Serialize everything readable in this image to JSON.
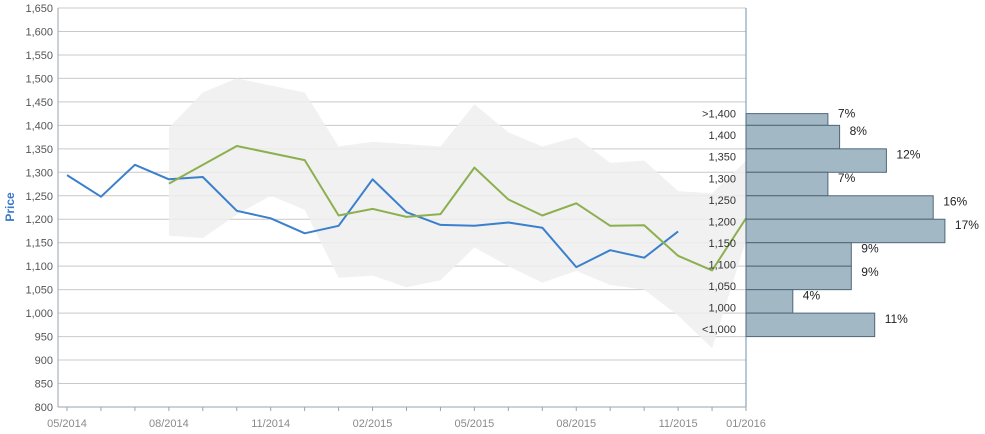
{
  "chart_data": {
    "type": "line",
    "title": "",
    "ylabel": "Price",
    "ylim": [
      800,
      1650
    ],
    "yticks": [
      "800",
      "850",
      "900",
      "950",
      "1,000",
      "1,050",
      "1,100",
      "1,150",
      "1,200",
      "1,250",
      "1,300",
      "1,350",
      "1,400",
      "1,450",
      "1,500",
      "1,550",
      "1,600",
      "1,650"
    ],
    "xlim": [
      "2014-05",
      "2016-01"
    ],
    "xticks": [
      "05/2014",
      "08/2014",
      "11/2014",
      "02/2015",
      "05/2015",
      "08/2015",
      "11/2015",
      "01/2016"
    ],
    "grid": true,
    "legend": "none",
    "series": [
      {
        "color": "#3a80cc",
        "x": [
          "2014-05",
          "2014-06",
          "2014-07",
          "2014-08",
          "2014-09",
          "2014-10",
          "2014-11",
          "2014-12",
          "2015-01",
          "2015-02",
          "2015-03",
          "2015-04",
          "2015-05",
          "2015-06",
          "2015-07",
          "2015-08",
          "2015-09",
          "2015-10",
          "2015-11"
        ],
        "values": [
          1294,
          1248,
          1316,
          1285,
          1290,
          1218,
          1202,
          1170,
          1186,
          1285,
          1215,
          1188,
          1186,
          1193,
          1182,
          1098,
          1134,
          1118,
          1174
        ]
      },
      {
        "color": "#8cb04f",
        "x": [
          "2014-08",
          "2014-10",
          "2014-12",
          "2015-01",
          "2015-02",
          "2015-03",
          "2015-04",
          "2015-05",
          "2015-06",
          "2015-07",
          "2015-08",
          "2015-09",
          "2015-10",
          "2015-11",
          "2015-12",
          "2016-01"
        ],
        "values": [
          1276,
          1356,
          1326,
          1208,
          1222,
          1205,
          1211,
          1310,
          1242,
          1208,
          1234,
          1186,
          1187,
          1122,
          1091,
          1202
        ]
      }
    ],
    "range_band": {
      "color": "#efefef",
      "x": [
        "2014-08",
        "2014-09",
        "2014-10",
        "2014-11",
        "2014-12",
        "2015-01",
        "2015-02",
        "2015-03",
        "2015-04",
        "2015-05",
        "2015-06",
        "2015-07",
        "2015-08",
        "2015-09",
        "2015-10",
        "2015-11",
        "2015-12",
        "2016-01"
      ],
      "upper": [
        1395,
        1470,
        1500,
        1485,
        1470,
        1355,
        1365,
        1360,
        1355,
        1445,
        1385,
        1355,
        1375,
        1320,
        1325,
        1260,
        1255,
        1325
      ],
      "lower": [
        1165,
        1160,
        1210,
        1250,
        1220,
        1075,
        1080,
        1055,
        1070,
        1140,
        1100,
        1065,
        1090,
        1060,
        1050,
        995,
        925,
        1155
      ]
    },
    "distribution": {
      "color": "#a3b8c5",
      "bins": [
        {
          "label": ">1,400",
          "pct": 7,
          "pct_label": "7%",
          "top": 1425,
          "bottom": 1400
        },
        {
          "label": "1,400",
          "pct": 8,
          "pct_label": "8%",
          "top": 1400,
          "bottom": 1350
        },
        {
          "label": "1,350",
          "pct": 12,
          "pct_label": "12%",
          "top": 1350,
          "bottom": 1300
        },
        {
          "label": "1,300",
          "pct": 7,
          "pct_label": "7%",
          "top": 1300,
          "bottom": 1250
        },
        {
          "label": "1,250",
          "pct": 16,
          "pct_label": "16%",
          "top": 1250,
          "bottom": 1200
        },
        {
          "label": "1,200",
          "pct": 17,
          "pct_label": "17%",
          "top": 1200,
          "bottom": 1150
        },
        {
          "label": "1,150",
          "pct": 9,
          "pct_label": "9%",
          "top": 1150,
          "bottom": 1100
        },
        {
          "label": "1,100",
          "pct": 9,
          "pct_label": "9%",
          "top": 1100,
          "bottom": 1050
        },
        {
          "label": "1,050",
          "pct": 4,
          "pct_label": "4%",
          "top": 1050,
          "bottom": 1000
        },
        {
          "label": "1,000",
          "pct": 11,
          "pct_label": "11%",
          "top": 1000,
          "bottom": 950
        },
        {
          "label": "<1,000",
          "pct": null,
          "pct_label": null,
          "top": null,
          "bottom": null
        }
      ]
    }
  }
}
